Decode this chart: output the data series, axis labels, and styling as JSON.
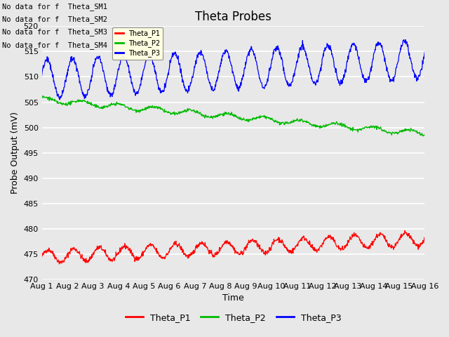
{
  "title": "Theta Probes",
  "xlabel": "Time",
  "ylabel": "Probe Output (mV)",
  "ylim": [
    470,
    520
  ],
  "yticks": [
    470,
    475,
    480,
    485,
    490,
    495,
    500,
    505,
    510,
    515,
    520
  ],
  "n_days": 15,
  "xtick_labels": [
    "Aug 1",
    "Aug 2",
    "Aug 3",
    "Aug 4",
    "Aug 5",
    "Aug 6",
    "Aug 7",
    "Aug 8",
    "Aug 9",
    "Aug 10",
    "Aug 11",
    "Aug 12",
    "Aug 13",
    "Aug 14",
    "Aug 15",
    "Aug 16"
  ],
  "plot_bg_color": "#e8e8e8",
  "fig_bg_color": "#e8e8e8",
  "grid_color": "#ffffff",
  "no_data_texts": [
    "No data for f  Theta_SM1",
    "No data for f  Theta_SM2",
    "No data for f  Theta_SM3",
    "No data for f  Theta_SM4"
  ],
  "legend_labels": [
    "Theta_P1",
    "Theta_P2",
    "Theta_P3"
  ],
  "legend_colors": [
    "#ff0000",
    "#00bb00",
    "#0000ff"
  ],
  "line_colors": [
    "#ff0000",
    "#00bb00",
    "#0000ff"
  ],
  "title_fontsize": 12,
  "axis_label_fontsize": 9,
  "tick_fontsize": 8,
  "nodata_fontsize": 7.5,
  "legend_fontsize": 9,
  "inner_legend_fontsize": 7
}
